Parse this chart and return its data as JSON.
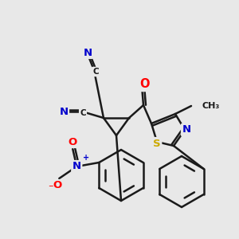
{
  "bg": "#e8e8e8",
  "bond_color": "#1a1a1a",
  "atom_colors": {
    "N": "#0000cc",
    "O": "#ff0000",
    "S": "#ccaa00",
    "C": "#1a1a1a"
  },
  "lw": 1.8,
  "fs": 9.5,
  "figsize": [
    3.0,
    3.0
  ],
  "dpi": 100
}
